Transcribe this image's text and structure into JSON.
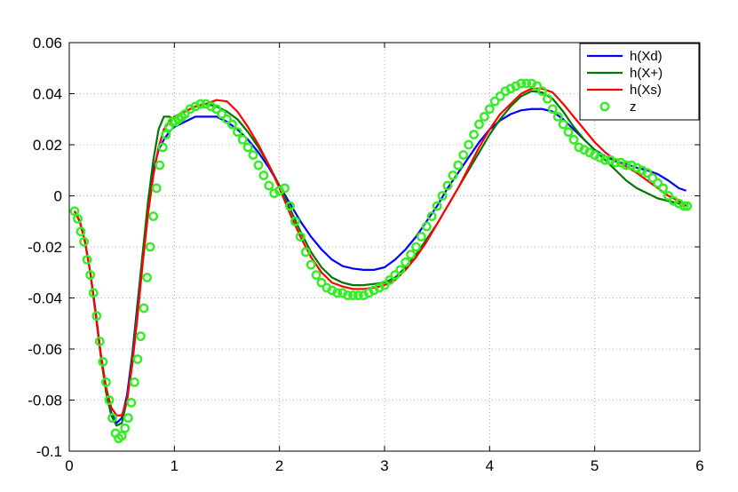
{
  "chart_data": {
    "type": "line",
    "title": "",
    "xlabel": "",
    "ylabel": "",
    "xlim": [
      0,
      6
    ],
    "ylim": [
      -0.1,
      0.06
    ],
    "x_ticks": [
      0,
      1,
      2,
      3,
      4,
      5,
      6
    ],
    "x_tick_labels": [
      "0",
      "1",
      "2",
      "3",
      "4",
      "5",
      "6"
    ],
    "y_ticks": [
      -0.1,
      -0.08,
      -0.06,
      -0.04,
      -0.02,
      0,
      0.02,
      0.04,
      0.06
    ],
    "y_tick_labels": [
      "-0.1",
      "-0.08",
      "-0.06",
      "-0.04",
      "-0.02",
      "0",
      "0.02",
      "0.04",
      "0.06"
    ],
    "grid": true,
    "legend_position": "top-right",
    "series": [
      {
        "name": "h(Xd)",
        "color": "#0000ff",
        "style": "line",
        "x": [
          0.05,
          0.1,
          0.15,
          0.2,
          0.25,
          0.3,
          0.35,
          0.4,
          0.45,
          0.5,
          0.55,
          0.6,
          0.65,
          0.7,
          0.75,
          0.8,
          0.85,
          0.9,
          0.95,
          1.0,
          1.1,
          1.2,
          1.3,
          1.4,
          1.5,
          1.6,
          1.7,
          1.8,
          1.9,
          2.0,
          2.1,
          2.2,
          2.3,
          2.4,
          2.5,
          2.6,
          2.7,
          2.8,
          2.9,
          3.0,
          3.1,
          3.2,
          3.3,
          3.4,
          3.5,
          3.6,
          3.7,
          3.8,
          3.9,
          4.0,
          4.1,
          4.2,
          4.3,
          4.4,
          4.5,
          4.6,
          4.7,
          4.8,
          4.9,
          5.0,
          5.1,
          5.2,
          5.3,
          5.4,
          5.5,
          5.6,
          5.7,
          5.8,
          5.87
        ],
        "y": [
          -0.006,
          -0.01,
          -0.018,
          -0.03,
          -0.045,
          -0.062,
          -0.076,
          -0.085,
          -0.089,
          -0.087,
          -0.078,
          -0.062,
          -0.042,
          -0.022,
          -0.004,
          0.01,
          0.018,
          0.022,
          0.025,
          0.027,
          0.029,
          0.031,
          0.031,
          0.031,
          0.029,
          0.026,
          0.022,
          0.017,
          0.011,
          0.004,
          -0.003,
          -0.01,
          -0.016,
          -0.021,
          -0.025,
          -0.0275,
          -0.0285,
          -0.029,
          -0.029,
          -0.028,
          -0.025,
          -0.021,
          -0.016,
          -0.01,
          -0.004,
          0.003,
          0.009,
          0.015,
          0.021,
          0.026,
          0.0295,
          0.032,
          0.0335,
          0.034,
          0.034,
          0.033,
          0.03,
          0.026,
          0.022,
          0.018,
          0.0155,
          0.0135,
          0.0125,
          0.011,
          0.01,
          0.0085,
          0.006,
          0.003,
          0.002
        ]
      },
      {
        "name": "h(X+)",
        "color": "#007700",
        "style": "line",
        "x": [
          0.05,
          0.1,
          0.15,
          0.2,
          0.25,
          0.3,
          0.35,
          0.4,
          0.45,
          0.5,
          0.55,
          0.6,
          0.65,
          0.7,
          0.75,
          0.8,
          0.85,
          0.9,
          0.95,
          1.0,
          1.1,
          1.2,
          1.3,
          1.4,
          1.5,
          1.6,
          1.7,
          1.8,
          1.9,
          2.0,
          2.1,
          2.2,
          2.3,
          2.4,
          2.5,
          2.6,
          2.7,
          2.8,
          2.9,
          3.0,
          3.1,
          3.2,
          3.3,
          3.4,
          3.5,
          3.6,
          3.7,
          3.8,
          3.9,
          4.0,
          4.1,
          4.2,
          4.3,
          4.4,
          4.5,
          4.6,
          4.7,
          4.8,
          4.9,
          5.0,
          5.1,
          5.2,
          5.3,
          5.4,
          5.5,
          5.6,
          5.7,
          5.8,
          5.87
        ],
        "y": [
          -0.006,
          -0.01,
          -0.018,
          -0.03,
          -0.046,
          -0.063,
          -0.077,
          -0.086,
          -0.09,
          -0.089,
          -0.08,
          -0.064,
          -0.044,
          -0.022,
          -0.002,
          0.014,
          0.026,
          0.031,
          0.031,
          0.03,
          0.033,
          0.035,
          0.036,
          0.035,
          0.033,
          0.03,
          0.025,
          0.019,
          0.012,
          0.004,
          -0.005,
          -0.014,
          -0.022,
          -0.028,
          -0.032,
          -0.034,
          -0.035,
          -0.035,
          -0.0345,
          -0.034,
          -0.032,
          -0.028,
          -0.023,
          -0.017,
          -0.011,
          -0.004,
          0.003,
          0.01,
          0.017,
          0.024,
          0.03,
          0.035,
          0.039,
          0.041,
          0.0405,
          0.038,
          0.033,
          0.027,
          0.022,
          0.018,
          0.014,
          0.01,
          0.006,
          0.003,
          0.001,
          -0.001,
          -0.002,
          -0.003,
          -0.004
        ]
      },
      {
        "name": "h(Xs)",
        "color": "#ff0000",
        "style": "line",
        "x": [
          0.05,
          0.1,
          0.15,
          0.2,
          0.25,
          0.3,
          0.35,
          0.4,
          0.45,
          0.5,
          0.55,
          0.6,
          0.65,
          0.7,
          0.75,
          0.8,
          0.85,
          0.9,
          0.95,
          1.0,
          1.1,
          1.2,
          1.3,
          1.4,
          1.5,
          1.6,
          1.7,
          1.8,
          1.9,
          2.0,
          2.1,
          2.2,
          2.3,
          2.4,
          2.5,
          2.6,
          2.7,
          2.8,
          2.9,
          3.0,
          3.1,
          3.2,
          3.3,
          3.4,
          3.5,
          3.6,
          3.7,
          3.8,
          3.9,
          4.0,
          4.1,
          4.2,
          4.3,
          4.4,
          4.5,
          4.6,
          4.7,
          4.8,
          4.9,
          5.0,
          5.1,
          5.2,
          5.3,
          5.4,
          5.5,
          5.6,
          5.7,
          5.8,
          5.87
        ],
        "y": [
          -0.006,
          -0.01,
          -0.018,
          -0.03,
          -0.046,
          -0.062,
          -0.075,
          -0.083,
          -0.086,
          -0.086,
          -0.08,
          -0.066,
          -0.047,
          -0.026,
          -0.007,
          0.008,
          0.019,
          0.026,
          0.029,
          0.031,
          0.033,
          0.035,
          0.036,
          0.0375,
          0.037,
          0.033,
          0.027,
          0.02,
          0.012,
          0.003,
          -0.007,
          -0.016,
          -0.024,
          -0.03,
          -0.034,
          -0.0355,
          -0.0365,
          -0.0365,
          -0.036,
          -0.035,
          -0.033,
          -0.029,
          -0.024,
          -0.018,
          -0.011,
          -0.004,
          0.003,
          0.011,
          0.019,
          0.026,
          0.032,
          0.036,
          0.04,
          0.042,
          0.042,
          0.0405,
          0.036,
          0.031,
          0.026,
          0.021,
          0.017,
          0.014,
          0.0115,
          0.009,
          0.006,
          0.003,
          0.0,
          -0.002,
          -0.004
        ]
      },
      {
        "name": "z",
        "color": "#33ee22",
        "style": "markers",
        "x": [
          0.05,
          0.08,
          0.11,
          0.14,
          0.17,
          0.2,
          0.23,
          0.26,
          0.29,
          0.32,
          0.35,
          0.38,
          0.41,
          0.44,
          0.47,
          0.5,
          0.53,
          0.56,
          0.59,
          0.62,
          0.65,
          0.68,
          0.71,
          0.74,
          0.77,
          0.8,
          0.83,
          0.86,
          0.89,
          0.92,
          0.95,
          0.98,
          1.01,
          1.04,
          1.07,
          1.1,
          1.15,
          1.2,
          1.25,
          1.3,
          1.35,
          1.4,
          1.45,
          1.5,
          1.55,
          1.6,
          1.65,
          1.7,
          1.75,
          1.8,
          1.85,
          1.9,
          1.95,
          2.0,
          2.05,
          2.1,
          2.15,
          2.2,
          2.25,
          2.3,
          2.35,
          2.4,
          2.45,
          2.5,
          2.55,
          2.6,
          2.65,
          2.7,
          2.75,
          2.8,
          2.85,
          2.9,
          2.95,
          3.0,
          3.05,
          3.1,
          3.15,
          3.2,
          3.25,
          3.3,
          3.35,
          3.4,
          3.45,
          3.5,
          3.55,
          3.6,
          3.65,
          3.7,
          3.75,
          3.8,
          3.85,
          3.9,
          3.95,
          4.0,
          4.05,
          4.1,
          4.15,
          4.2,
          4.25,
          4.3,
          4.35,
          4.4,
          4.45,
          4.5,
          4.55,
          4.6,
          4.65,
          4.7,
          4.75,
          4.8,
          4.85,
          4.9,
          4.95,
          5.0,
          5.05,
          5.1,
          5.15,
          5.2,
          5.25,
          5.3,
          5.35,
          5.4,
          5.45,
          5.5,
          5.55,
          5.6,
          5.65,
          5.7,
          5.75,
          5.8,
          5.85,
          5.88
        ],
        "y": [
          -0.006,
          -0.009,
          -0.014,
          -0.018,
          -0.025,
          -0.031,
          -0.038,
          -0.047,
          -0.057,
          -0.065,
          -0.073,
          -0.08,
          -0.087,
          -0.093,
          -0.095,
          -0.094,
          -0.091,
          -0.087,
          -0.081,
          -0.073,
          -0.064,
          -0.055,
          -0.044,
          -0.032,
          -0.02,
          -0.008,
          0.003,
          0.012,
          0.019,
          0.024,
          0.027,
          0.029,
          0.029,
          0.03,
          0.031,
          0.032,
          0.034,
          0.035,
          0.036,
          0.036,
          0.035,
          0.034,
          0.032,
          0.03,
          0.028,
          0.025,
          0.022,
          0.019,
          0.016,
          0.012,
          0.008,
          0.004,
          0.001,
          0.002,
          0.003,
          -0.004,
          -0.01,
          -0.016,
          -0.022,
          -0.027,
          -0.031,
          -0.034,
          -0.036,
          -0.037,
          -0.038,
          -0.038,
          -0.039,
          -0.039,
          -0.039,
          -0.039,
          -0.038,
          -0.037,
          -0.036,
          -0.035,
          -0.033,
          -0.031,
          -0.029,
          -0.026,
          -0.023,
          -0.02,
          -0.016,
          -0.012,
          -0.008,
          -0.004,
          0.0,
          0.004,
          0.008,
          0.012,
          0.016,
          0.02,
          0.024,
          0.028,
          0.031,
          0.034,
          0.037,
          0.039,
          0.041,
          0.042,
          0.043,
          0.044,
          0.044,
          0.044,
          0.043,
          0.041,
          0.038,
          0.034,
          0.031,
          0.028,
          0.025,
          0.022,
          0.019,
          0.018,
          0.017,
          0.016,
          0.015,
          0.014,
          0.014,
          0.013,
          0.013,
          0.012,
          0.012,
          0.011,
          0.01,
          0.009,
          0.007,
          0.005,
          0.003,
          0.0,
          -0.002,
          -0.003,
          -0.004,
          -0.004
        ]
      }
    ]
  }
}
